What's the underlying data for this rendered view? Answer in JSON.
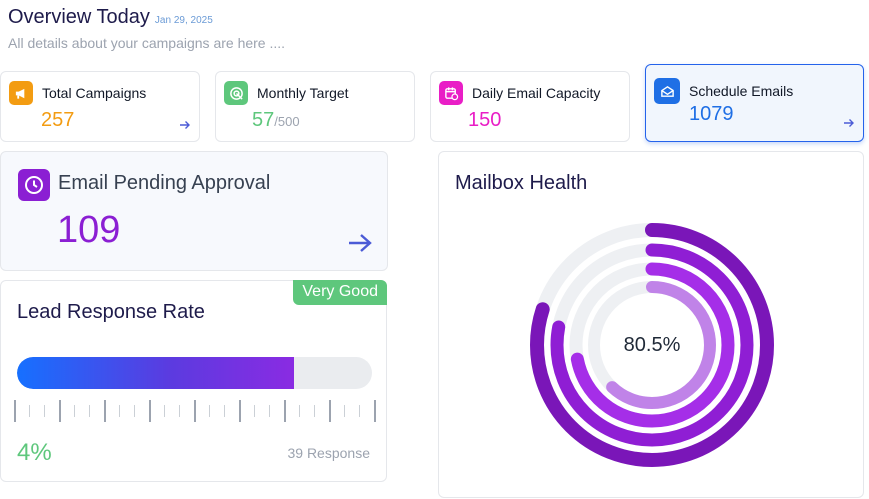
{
  "header": {
    "title": "Overview Today",
    "date": "Jan 29, 2025",
    "subtitle": "All details about your campaigns are here ...."
  },
  "stats": [
    {
      "label": "Total Campaigns",
      "value": "257",
      "sub": "",
      "icon": "megaphone-icon",
      "accent": "#f39c12",
      "value_color": "#f39c12"
    },
    {
      "label": "Monthly Target",
      "value": "57",
      "sub": "/500",
      "icon": "target-icon",
      "accent": "#5ec77c",
      "value_color": "#5ec77c"
    },
    {
      "label": "Daily Email Capacity",
      "value": "150",
      "sub": "",
      "icon": "calendar-clock-icon",
      "accent": "#e91ec6",
      "value_color": "#e91ec6"
    },
    {
      "label": "Schedule Emails",
      "value": "1079",
      "sub": "",
      "icon": "envelope-open-icon",
      "accent": "#1f6fe5",
      "value_color": "#1f6fe5"
    }
  ],
  "pending": {
    "label": "Email Pending Approval",
    "value": "109",
    "icon": "clock-icon",
    "accent": "#8b1fd3"
  },
  "lead": {
    "title": "Lead Response Rate",
    "badge": "Very Good",
    "percent_text": "4%",
    "bar_fill_fraction": 0.78,
    "responses": "39 Response"
  },
  "mailbox": {
    "title": "Mailbox Health",
    "center": "80.5%",
    "rings": [
      {
        "fraction": 0.8,
        "color": "#7a16b8"
      },
      {
        "fraction": 0.78,
        "color": "#8f1ed4"
      },
      {
        "fraction": 0.72,
        "color": "#a52ee8"
      },
      {
        "fraction": 0.62,
        "color": "#c083e8"
      }
    ]
  },
  "colors": {
    "title": "#1e1b4b",
    "arrow": "#4b5bd6",
    "badge": "#5ec77c"
  }
}
